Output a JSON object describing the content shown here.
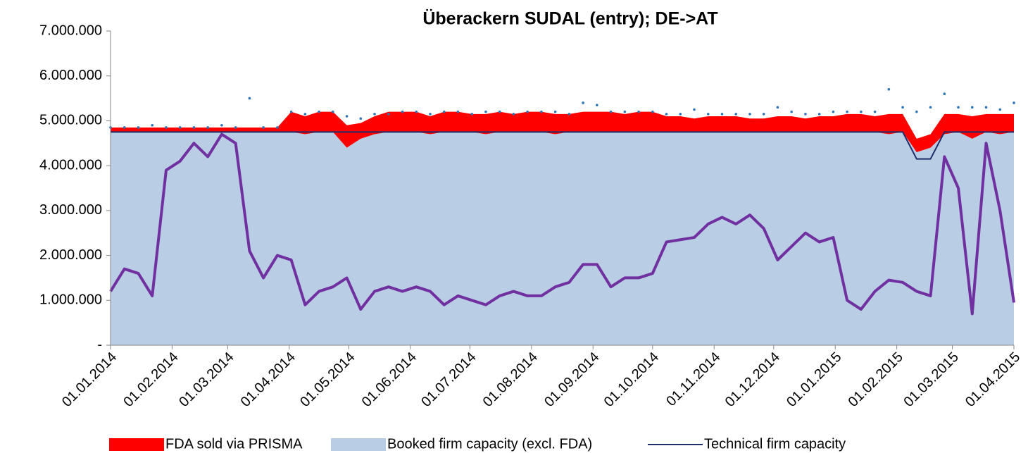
{
  "chart_data": {
    "type": "stacked_area_line",
    "title": "Überackern SUDAL (entry); DE->AT",
    "x": [
      "01.01.2014",
      "08.01.2014",
      "15.01.2014",
      "22.01.2014",
      "29.01.2014",
      "05.02.2014",
      "12.02.2014",
      "19.02.2014",
      "26.02.2014",
      "05.03.2014",
      "12.03.2014",
      "19.03.2014",
      "26.03.2014",
      "02.04.2014",
      "09.04.2014",
      "16.04.2014",
      "23.04.2014",
      "30.04.2014",
      "07.05.2014",
      "14.05.2014",
      "21.05.2014",
      "28.05.2014",
      "04.06.2014",
      "11.06.2014",
      "18.06.2014",
      "25.06.2014",
      "02.07.2014",
      "09.07.2014",
      "16.07.2014",
      "23.07.2014",
      "30.07.2014",
      "06.08.2014",
      "13.08.2014",
      "20.08.2014",
      "27.08.2014",
      "03.09.2014",
      "10.09.2014",
      "17.09.2014",
      "24.09.2014",
      "01.10.2014",
      "08.10.2014",
      "15.10.2014",
      "22.10.2014",
      "29.10.2014",
      "05.11.2014",
      "12.11.2014",
      "19.11.2014",
      "26.11.2014",
      "03.12.2014",
      "10.12.2014",
      "17.12.2014",
      "24.12.2014",
      "31.12.2014",
      "07.01.2015",
      "14.01.2015",
      "21.01.2015",
      "28.01.2015",
      "04.02.2015",
      "11.02.2015",
      "18.02.2015",
      "25.02.2015",
      "04.03.2015",
      "11.03.2015",
      "18.03.2015",
      "25.03.2015",
      "01.04.2015"
    ],
    "xlim": [
      "01.01.2014",
      "01.04.2015"
    ],
    "xticks": [
      "01.01.2014",
      "01.02.2014",
      "01.03.2014",
      "01.04.2014",
      "01.05.2014",
      "01.06.2014",
      "01.07.2014",
      "01.08.2014",
      "01.09.2014",
      "01.10.2014",
      "01.11.2014",
      "01.12.2014",
      "01.01.2015",
      "01.02.2015",
      "01.03.2015",
      "01.04.2015"
    ],
    "ylim": [
      0,
      7000000
    ],
    "yticks": [
      {
        "value": 0,
        "label": "-"
      },
      {
        "value": 1000000,
        "label": "1.000.000"
      },
      {
        "value": 2000000,
        "label": "2.000.000"
      },
      {
        "value": 3000000,
        "label": "3.000.000"
      },
      {
        "value": 4000000,
        "label": "4.000.000"
      },
      {
        "value": 5000000,
        "label": "5.000.000"
      },
      {
        "value": 6000000,
        "label": "6.000.000"
      },
      {
        "value": 7000000,
        "label": "7.000.000"
      }
    ],
    "series": [
      {
        "name": "Booked firm capacity (excl. FDA)",
        "kind": "area",
        "color": "#b9cde5",
        "values": [
          4750000,
          4750000,
          4750000,
          4750000,
          4750000,
          4750000,
          4750000,
          4750000,
          4750000,
          4750000,
          4750000,
          4750000,
          4750000,
          4750000,
          4700000,
          4750000,
          4750000,
          4400000,
          4600000,
          4700000,
          4750000,
          4750000,
          4750000,
          4700000,
          4750000,
          4750000,
          4750000,
          4700000,
          4750000,
          4750000,
          4750000,
          4750000,
          4700000,
          4750000,
          4750000,
          4750000,
          4750000,
          4750000,
          4750000,
          4750000,
          4750000,
          4750000,
          4750000,
          4750000,
          4750000,
          4750000,
          4750000,
          4750000,
          4750000,
          4750000,
          4750000,
          4750000,
          4750000,
          4750000,
          4750000,
          4750000,
          4700000,
          4750000,
          4300000,
          4400000,
          4700000,
          4750000,
          4600000,
          4750000,
          4700000,
          4750000
        ]
      },
      {
        "name": "FDA sold via PRISMA",
        "kind": "area",
        "color": "#ff0000",
        "values": [
          100000,
          100000,
          100000,
          100000,
          100000,
          100000,
          100000,
          100000,
          100000,
          100000,
          100000,
          100000,
          100000,
          450000,
          400000,
          450000,
          450000,
          500000,
          350000,
          400000,
          450000,
          450000,
          450000,
          400000,
          450000,
          450000,
          400000,
          450000,
          450000,
          400000,
          450000,
          450000,
          450000,
          400000,
          450000,
          450000,
          450000,
          400000,
          450000,
          450000,
          350000,
          350000,
          300000,
          350000,
          350000,
          350000,
          300000,
          300000,
          350000,
          350000,
          300000,
          350000,
          350000,
          400000,
          400000,
          350000,
          450000,
          400000,
          300000,
          300000,
          450000,
          400000,
          500000,
          400000,
          450000,
          400000
        ]
      },
      {
        "name": "Technical firm capacity",
        "kind": "line",
        "color": "#1f2d6b",
        "values": [
          4750000,
          4750000,
          4750000,
          4750000,
          4750000,
          4750000,
          4750000,
          4750000,
          4750000,
          4750000,
          4750000,
          4750000,
          4750000,
          4750000,
          4750000,
          4750000,
          4750000,
          4750000,
          4750000,
          4750000,
          4750000,
          4750000,
          4750000,
          4750000,
          4750000,
          4750000,
          4750000,
          4750000,
          4750000,
          4750000,
          4750000,
          4750000,
          4750000,
          4750000,
          4750000,
          4750000,
          4750000,
          4750000,
          4750000,
          4750000,
          4750000,
          4750000,
          4750000,
          4750000,
          4750000,
          4750000,
          4750000,
          4750000,
          4750000,
          4750000,
          4750000,
          4750000,
          4750000,
          4750000,
          4750000,
          4750000,
          4750000,
          4750000,
          4150000,
          4150000,
          4750000,
          4750000,
          4750000,
          4750000,
          4750000,
          4750000
        ]
      },
      {
        "kind": "dots",
        "color": "#2e75b6",
        "values": [
          4850000,
          4850000,
          4850000,
          4900000,
          4850000,
          4850000,
          4850000,
          4850000,
          4900000,
          4850000,
          5500000,
          4850000,
          4850000,
          5200000,
          5150000,
          5200000,
          5200000,
          5100000,
          5050000,
          5150000,
          5150000,
          5200000,
          5200000,
          5150000,
          5200000,
          5200000,
          5150000,
          5200000,
          5200000,
          5150000,
          5200000,
          5200000,
          5200000,
          5150000,
          5400000,
          5350000,
          5200000,
          5200000,
          5200000,
          5200000,
          5150000,
          5150000,
          5250000,
          5150000,
          5150000,
          5150000,
          5150000,
          5150000,
          5300000,
          5200000,
          5150000,
          5150000,
          5200000,
          5200000,
          5200000,
          5200000,
          5700000,
          5300000,
          5200000,
          5300000,
          5600000,
          5300000,
          5300000,
          5300000,
          5250000,
          5400000
        ]
      },
      {
        "kind": "line",
        "color": "#7030a0",
        "width": 4,
        "values": [
          1200000,
          1700000,
          1600000,
          1100000,
          3900000,
          4100000,
          4500000,
          4200000,
          4700000,
          4500000,
          2100000,
          1500000,
          2000000,
          1900000,
          900000,
          1200000,
          1300000,
          1500000,
          800000,
          1200000,
          1300000,
          1200000,
          1300000,
          1200000,
          900000,
          1100000,
          1000000,
          900000,
          1100000,
          1200000,
          1100000,
          1100000,
          1300000,
          1400000,
          1800000,
          1800000,
          1300000,
          1500000,
          1500000,
          1600000,
          2300000,
          2350000,
          2400000,
          2700000,
          2850000,
          2700000,
          2900000,
          2600000,
          1900000,
          2200000,
          2500000,
          2300000,
          2400000,
          1000000,
          800000,
          1200000,
          1450000,
          1400000,
          1200000,
          1100000,
          4200000,
          3500000,
          700000,
          4500000,
          3000000,
          950000
        ]
      }
    ]
  }
}
